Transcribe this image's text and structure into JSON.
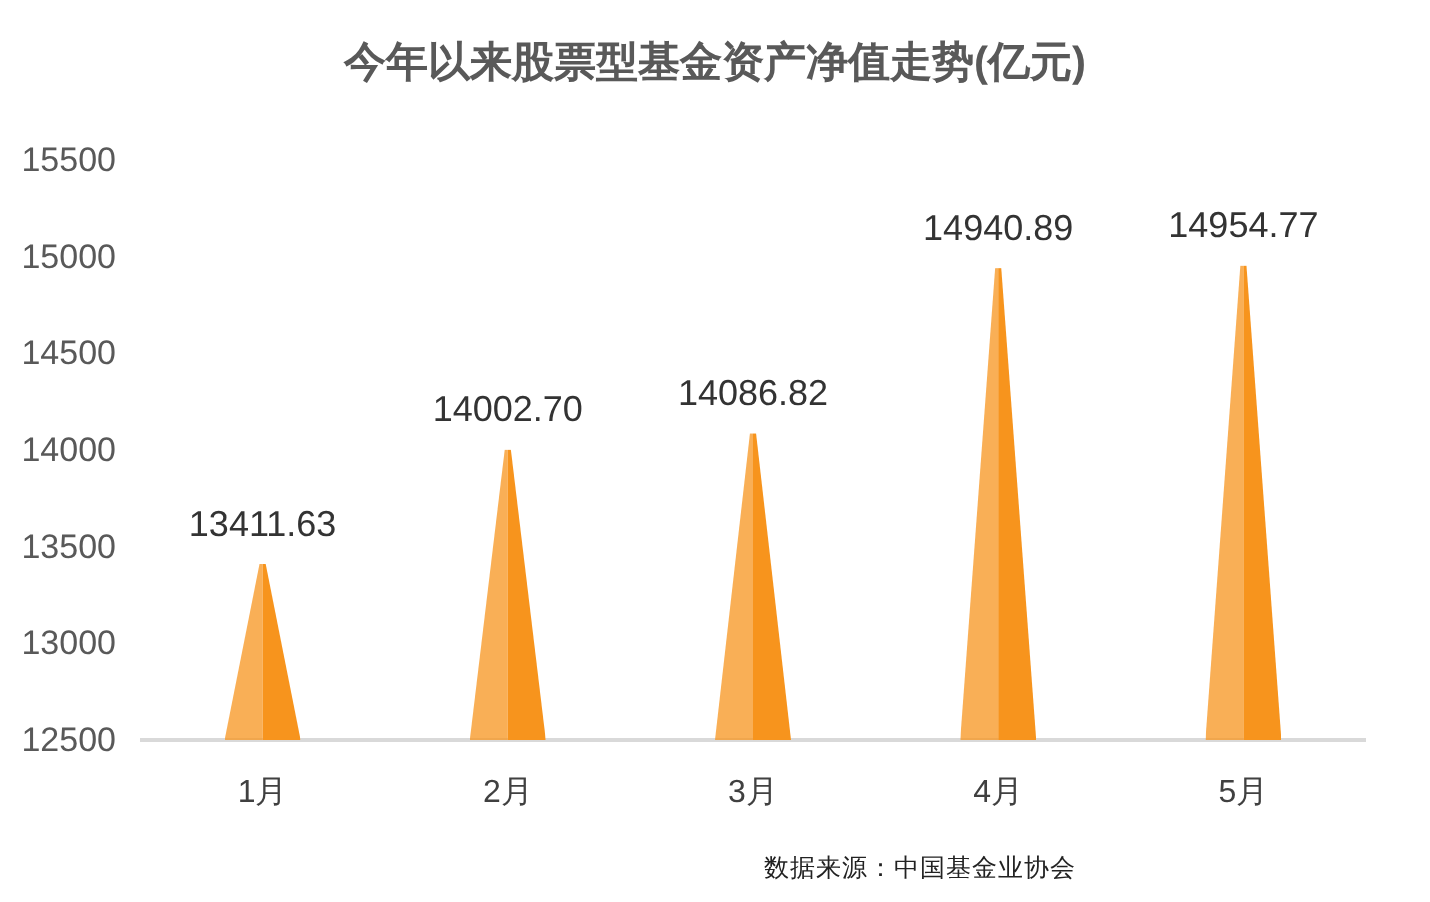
{
  "chart_data": {
    "type": "bar",
    "title": "今年以来股票型基金资产净值走势(亿元)",
    "categories": [
      "1月",
      "2月",
      "3月",
      "4月",
      "5月"
    ],
    "values": [
      13411.63,
      14002.7,
      14086.82,
      14940.89,
      14954.77
    ],
    "value_labels": [
      "13411.63",
      "14002.70",
      "14086.82",
      "14940.89",
      "14954.77"
    ],
    "color": "#f7941d",
    "ylim": [
      12500,
      15500
    ],
    "yticks": [
      12500,
      13000,
      13500,
      14000,
      14500,
      15000,
      15500
    ],
    "grid": false,
    "annotations": [
      "数据来源：中国基金业协会"
    ]
  }
}
